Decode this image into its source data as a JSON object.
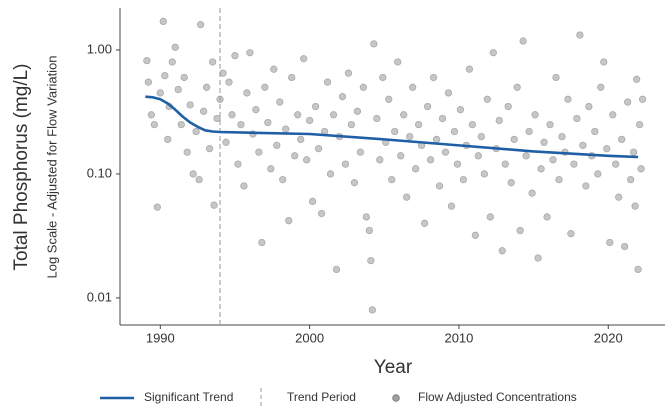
{
  "chart_data": {
    "type": "scatter",
    "x_label": "Year",
    "y_label": "Total Phosphorus (mg/L)",
    "y_sublabel": "Log Scale - Adjusted for Flow Variation",
    "xlim": [
      1987.3,
      2023.8
    ],
    "xticks": [
      1990,
      2000,
      2010,
      2020
    ],
    "ylim": [
      0.00605,
      2.18
    ],
    "yticks": [
      {
        "value": 1,
        "label": "1.00"
      },
      {
        "value": 0.1,
        "label": "0.10"
      },
      0.01
    ],
    "log_y": true,
    "legend": "bottom",
    "series": [
      {
        "name": "Significant Trend",
        "type": "line",
        "color": "#1f5fa6",
        "x": [
          1989,
          1989.5,
          1990,
          1990.5,
          1991,
          1991.5,
          1992,
          1992.5,
          1993,
          1993.5,
          1994,
          1996,
          2000,
          2005,
          2010,
          2015,
          2020,
          2022
        ],
        "values": [
          0.42,
          0.415,
          0.4,
          0.37,
          0.33,
          0.29,
          0.26,
          0.24,
          0.225,
          0.22,
          0.218,
          0.215,
          0.21,
          0.19,
          0.17,
          0.152,
          0.14,
          0.137
        ]
      },
      {
        "name": "Flow Adjusted Concentrations",
        "type": "scatter",
        "color": "#a0a0a0",
        "x": [
          1989.1,
          1989.2,
          1989.4,
          1989.6,
          1989.8,
          1990.0,
          1990.2,
          1990.3,
          1990.5,
          1990.6,
          1990.8,
          1991.0,
          1991.2,
          1991.4,
          1991.6,
          1991.8,
          1992.0,
          1992.2,
          1992.4,
          1992.6,
          1992.7,
          1992.9,
          1993.1,
          1993.3,
          1993.5,
          1993.6,
          1993.8,
          1994.0,
          1994.2,
          1994.4,
          1994.6,
          1994.8,
          1995.0,
          1995.2,
          1995.4,
          1995.6,
          1995.8,
          1996.0,
          1996.2,
          1996.4,
          1996.6,
          1996.8,
          1997.0,
          1997.2,
          1997.4,
          1997.6,
          1997.8,
          1998.0,
          1998.2,
          1998.4,
          1998.6,
          1998.8,
          1999.0,
          1999.2,
          1999.4,
          1999.6,
          1999.8,
          2000.0,
          2000.2,
          2000.4,
          2000.6,
          2000.8,
          2001.0,
          2001.2,
          2001.4,
          2001.6,
          2001.8,
          2002.0,
          2002.2,
          2002.4,
          2002.6,
          2002.8,
          2003.0,
          2003.2,
          2003.4,
          2003.6,
          2003.8,
          2004.0,
          2004.1,
          2004.2,
          2004.3,
          2004.5,
          2004.7,
          2004.9,
          2005.1,
          2005.3,
          2005.5,
          2005.7,
          2005.9,
          2006.1,
          2006.3,
          2006.5,
          2006.7,
          2006.9,
          2007.1,
          2007.3,
          2007.5,
          2007.7,
          2007.9,
          2008.1,
          2008.3,
          2008.5,
          2008.7,
          2008.9,
          2009.1,
          2009.3,
          2009.5,
          2009.7,
          2009.9,
          2010.1,
          2010.3,
          2010.5,
          2010.7,
          2010.9,
          2011.1,
          2011.3,
          2011.5,
          2011.7,
          2011.9,
          2012.1,
          2012.3,
          2012.5,
          2012.7,
          2012.9,
          2013.1,
          2013.3,
          2013.5,
          2013.7,
          2013.9,
          2014.1,
          2014.3,
          2014.5,
          2014.7,
          2014.9,
          2015.1,
          2015.3,
          2015.5,
          2015.7,
          2015.9,
          2016.1,
          2016.3,
          2016.5,
          2016.7,
          2016.9,
          2017.1,
          2017.3,
          2017.5,
          2017.7,
          2017.9,
          2018.1,
          2018.3,
          2018.5,
          2018.7,
          2018.9,
          2019.1,
          2019.3,
          2019.5,
          2019.7,
          2019.9,
          2020.1,
          2020.3,
          2020.5,
          2020.7,
          2020.9,
          2021.1,
          2021.3,
          2021.5,
          2021.7,
          2021.8,
          2021.9,
          2022.0,
          2022.1,
          2022.2,
          2022.3
        ],
        "values": [
          0.82,
          0.55,
          0.3,
          0.25,
          0.054,
          0.45,
          1.7,
          0.62,
          0.19,
          0.35,
          0.8,
          1.05,
          0.48,
          0.25,
          0.6,
          0.15,
          0.36,
          0.1,
          0.22,
          0.09,
          1.6,
          0.32,
          0.5,
          0.16,
          0.8,
          0.056,
          0.28,
          0.4,
          0.65,
          0.18,
          0.55,
          0.3,
          0.9,
          0.12,
          0.25,
          0.08,
          0.45,
          0.95,
          0.21,
          0.33,
          0.15,
          0.028,
          0.5,
          0.26,
          0.11,
          0.7,
          0.17,
          0.38,
          0.09,
          0.23,
          0.042,
          0.6,
          0.14,
          0.3,
          0.19,
          0.85,
          0.13,
          0.27,
          0.06,
          0.35,
          0.16,
          0.048,
          0.22,
          0.55,
          0.1,
          0.3,
          0.017,
          0.2,
          0.42,
          0.12,
          0.65,
          0.25,
          0.085,
          0.32,
          0.15,
          0.5,
          0.045,
          0.035,
          0.02,
          0.008,
          1.12,
          0.28,
          0.13,
          0.6,
          0.18,
          0.4,
          0.09,
          0.22,
          0.8,
          0.14,
          0.3,
          0.065,
          0.2,
          0.5,
          0.11,
          0.25,
          0.17,
          0.04,
          0.35,
          0.13,
          0.6,
          0.19,
          0.08,
          0.28,
          0.15,
          0.45,
          0.055,
          0.22,
          0.12,
          0.33,
          0.09,
          0.17,
          0.7,
          0.25,
          0.032,
          0.14,
          0.2,
          0.1,
          0.4,
          0.045,
          0.95,
          0.16,
          0.27,
          0.024,
          0.12,
          0.35,
          0.085,
          0.19,
          0.5,
          0.035,
          1.18,
          0.14,
          0.22,
          0.07,
          0.3,
          0.021,
          0.11,
          0.18,
          0.045,
          0.25,
          0.13,
          0.6,
          0.09,
          0.2,
          0.15,
          0.4,
          0.033,
          0.12,
          0.28,
          1.32,
          0.17,
          0.08,
          0.35,
          0.14,
          0.22,
          0.1,
          0.5,
          0.8,
          0.16,
          0.028,
          0.3,
          0.12,
          0.065,
          0.19,
          0.026,
          0.38,
          0.09,
          0.15,
          0.055,
          0.58,
          0.017,
          0.25,
          0.11,
          0.4
        ]
      }
    ],
    "vlines": [
      {
        "x": 1994,
        "name": "Trend Period",
        "color": "#aaaaaa"
      }
    ]
  }
}
